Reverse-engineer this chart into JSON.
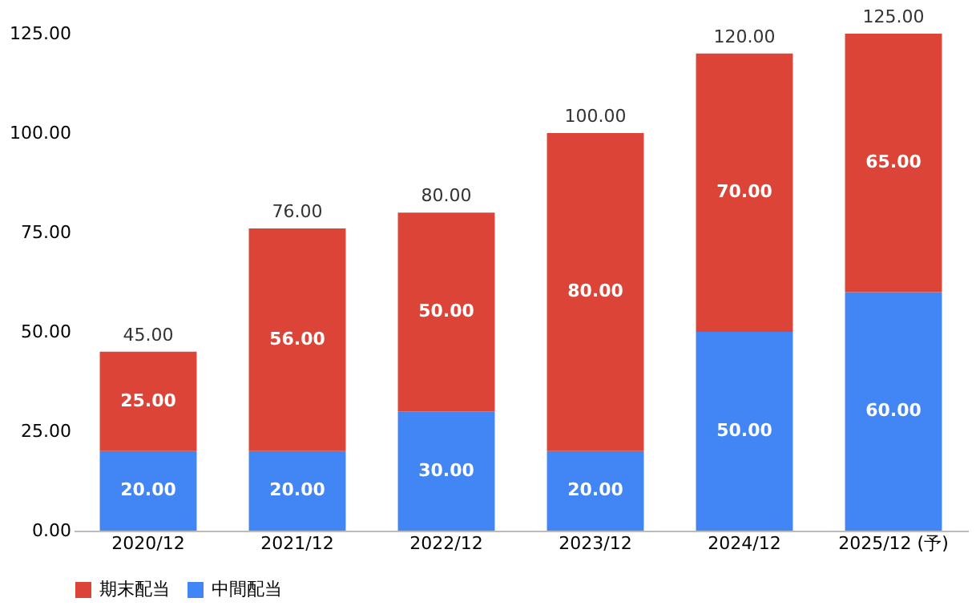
{
  "chart_data": {
    "type": "bar",
    "stacked": true,
    "categories": [
      "2020/12",
      "2021/12",
      "2022/12",
      "2023/12",
      "2024/12",
      "2025/12 (予)"
    ],
    "series": [
      {
        "name": "中間配当",
        "color": "#4285f4",
        "values": [
          20,
          20,
          30,
          20,
          50,
          60
        ],
        "value_labels": [
          "20.00",
          "20.00",
          "30.00",
          "20.00",
          "50.00",
          "60.00"
        ]
      },
      {
        "name": "期末配当",
        "color": "#db4437",
        "values": [
          25,
          56,
          50,
          80,
          70,
          65
        ],
        "value_labels": [
          "25.00",
          "56.00",
          "50.00",
          "80.00",
          "70.00",
          "65.00"
        ]
      }
    ],
    "totals": [
      "45.00",
      "76.00",
      "80.00",
      "100.00",
      "120.00",
      "125.00"
    ],
    "ylim": [
      0,
      125
    ],
    "yticks": [
      {
        "value": 0,
        "label": "0.00"
      },
      {
        "value": 25,
        "label": "25.00"
      },
      {
        "value": 50,
        "label": "50.00"
      },
      {
        "value": 75,
        "label": "75.00"
      },
      {
        "value": 100,
        "label": "100.00"
      },
      {
        "value": 125,
        "label": "125.00"
      }
    ],
    "grid": false,
    "legend": "bottom"
  }
}
